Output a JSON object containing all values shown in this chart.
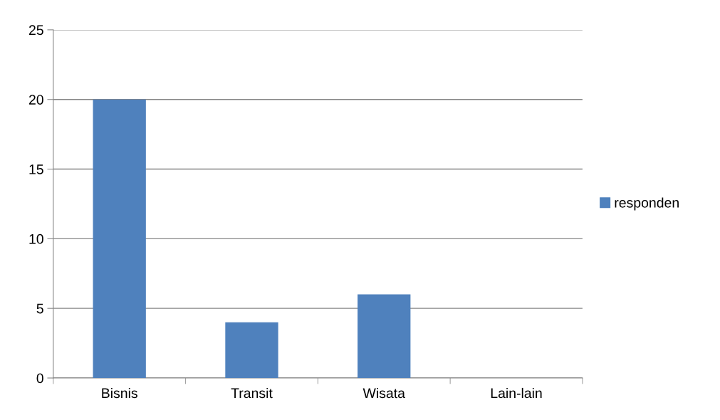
{
  "chart_data": {
    "type": "bar",
    "categories": [
      "Bisnis",
      "Transit",
      "Wisata",
      "Lain-lain"
    ],
    "series": [
      {
        "name": "responden",
        "color": "#4f81bd",
        "values": [
          20,
          4,
          6,
          0
        ]
      }
    ],
    "ylim": [
      0,
      25
    ],
    "yticks": [
      0,
      5,
      10,
      15,
      20,
      25
    ],
    "grid": "y",
    "legend": "right"
  }
}
